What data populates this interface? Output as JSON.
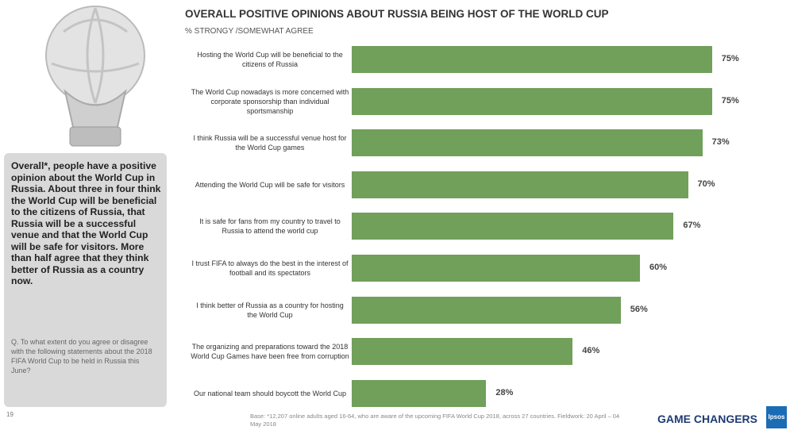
{
  "chart_data": {
    "type": "bar",
    "orientation": "horizontal",
    "title": "OVERALL POSITIVE OPINIONS ABOUT RUSSIA BEING HOST OF THE WORLD CUP",
    "subtitle": "% STRONGY /SOMEWHAT AGREE",
    "categories": [
      "Hosting the World Cup will be beneficial to the citizens of Russia",
      "The World Cup nowadays is more concerned with corporate sponsorship than individual sportsmanship",
      "I think Russia will be a successful venue host for the World Cup games",
      "Attending the World Cup will be safe for visitors",
      "It is safe for fans from my country to travel to Russia to attend the world cup",
      "I trust FIFA to always do the best in the interest of football and its spectators",
      "I think better of Russia as a country for hosting the World Cup",
      "The organizing and preparations toward the 2018 World Cup Games have been free from corruption",
      "Our national team should boycott the World Cup"
    ],
    "values": [
      75,
      75,
      73,
      70,
      67,
      60,
      56,
      46,
      28
    ],
    "value_labels": [
      "75%",
      "75%",
      "73%",
      "70%",
      "67%",
      "60%",
      "56%",
      "46%",
      "28%"
    ],
    "color": "#70a05a"
  },
  "slide": {
    "summary": "Overall*, people have a positive opinion about the World Cup in Russia. About three in four think the World Cup will be beneficial to the citizens of Russia, that Russia will be a successful venue and that the World Cup will be safe for visitors. More than half agree that they think better of Russia as a country now.",
    "question": "Q. To what extent do you agree or disagree with the following statements about the 2018 FIFA World Cup to be held in Russia this June?",
    "page_number": "19",
    "base_note": "Base: *12,207 online adults aged 16-64, who are aware of the upcoming FIFA World Cup 2018, across 27 countries. Fieldwork: 20 April – 04 May 2018",
    "brand_tagline": "GAME CHANGERS",
    "brand_logo": "Ipsos"
  }
}
